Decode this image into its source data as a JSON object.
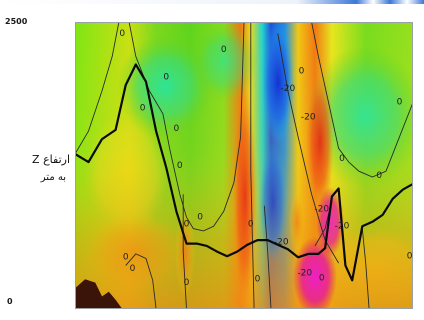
{
  "chart_data": {
    "type": "heatmap",
    "title": "",
    "xlabel": "",
    "ylabel": "ارتفاع Z به متر",
    "ylabel_lines": [
      "ارتفاع Z",
      "به متر"
    ],
    "y_ticks": [
      "2500",
      "0"
    ],
    "ylim": [
      0,
      2500
    ],
    "xlim": [
      0,
      100
    ],
    "grid": false,
    "legend": "none",
    "colormap": [
      "#1e4bd2",
      "#18b4e6",
      "#1ee6a0",
      "#5ad21e",
      "#d2e61e",
      "#f0c814",
      "#f08c14",
      "#e61e14",
      "#e61ec8"
    ],
    "contour_label_color": "#202020",
    "contour_labels": [
      {
        "text": "0",
        "x": 14,
        "y": 2380
      },
      {
        "text": "0",
        "x": 20,
        "y": 1730
      },
      {
        "text": "0",
        "x": 27,
        "y": 2000
      },
      {
        "text": "0",
        "x": 30,
        "y": 1550
      },
      {
        "text": "0",
        "x": 31,
        "y": 1230
      },
      {
        "text": "0",
        "x": 33,
        "y": 720
      },
      {
        "text": "0",
        "x": 37,
        "y": 780
      },
      {
        "text": "0",
        "x": 44,
        "y": 2240
      },
      {
        "text": "0",
        "x": 52,
        "y": 720
      },
      {
        "text": "0",
        "x": 54,
        "y": 240
      },
      {
        "text": "0",
        "x": 67,
        "y": 2050
      },
      {
        "text": "0",
        "x": 79,
        "y": 1290
      },
      {
        "text": "0",
        "x": 90,
        "y": 1140
      },
      {
        "text": "0",
        "x": 96,
        "y": 1780
      },
      {
        "text": "0",
        "x": 99,
        "y": 440
      },
      {
        "text": "0",
        "x": 15,
        "y": 430
      },
      {
        "text": "0",
        "x": 17,
        "y": 330
      },
      {
        "text": "0",
        "x": 33,
        "y": 210
      },
      {
        "text": "0",
        "x": 73,
        "y": 250
      },
      {
        "text": "-20",
        "x": 63,
        "y": 1900
      },
      {
        "text": "-20",
        "x": 69,
        "y": 1650
      },
      {
        "text": "-20",
        "x": 73,
        "y": 850
      },
      {
        "text": "-20",
        "x": 79,
        "y": 700
      },
      {
        "text": "-20",
        "x": 61,
        "y": 560
      },
      {
        "text": "-20",
        "x": 68,
        "y": 290
      }
    ],
    "thick_line": [
      [
        0,
        1350
      ],
      [
        4,
        1280
      ],
      [
        8,
        1480
      ],
      [
        12,
        1560
      ],
      [
        15,
        1950
      ],
      [
        18,
        2130
      ],
      [
        21,
        1980
      ],
      [
        24,
        1550
      ],
      [
        27,
        1230
      ],
      [
        30,
        850
      ],
      [
        33,
        570
      ],
      [
        36,
        570
      ],
      [
        39,
        550
      ],
      [
        42,
        500
      ],
      [
        45,
        460
      ],
      [
        48,
        500
      ],
      [
        51,
        560
      ],
      [
        54,
        600
      ],
      [
        57,
        600
      ],
      [
        60,
        560
      ],
      [
        63,
        520
      ],
      [
        66,
        450
      ],
      [
        69,
        480
      ],
      [
        72,
        480
      ],
      [
        74,
        530
      ],
      [
        76,
        980
      ],
      [
        78,
        1050
      ],
      [
        80,
        380
      ],
      [
        82,
        250
      ],
      [
        85,
        720
      ],
      [
        88,
        760
      ],
      [
        91,
        820
      ],
      [
        94,
        960
      ],
      [
        97,
        1040
      ],
      [
        100,
        1090
      ]
    ],
    "contours": [
      [
        [
          16,
          2500
        ],
        [
          18,
          2200
        ],
        [
          22,
          1900
        ],
        [
          26,
          1700
        ],
        [
          28,
          1400
        ],
        [
          31,
          1000
        ],
        [
          33,
          800
        ],
        [
          35,
          700
        ],
        [
          38,
          680
        ],
        [
          41,
          720
        ],
        [
          44,
          850
        ],
        [
          47,
          1100
        ],
        [
          49,
          1500
        ],
        [
          50,
          2500
        ]
      ],
      [
        [
          0,
          1350
        ],
        [
          4,
          1550
        ],
        [
          8,
          1900
        ],
        [
          11,
          2200
        ],
        [
          13,
          2500
        ]
      ],
      [
        [
          70,
          2500
        ],
        [
          72,
          2200
        ],
        [
          75,
          1800
        ],
        [
          78,
          1400
        ],
        [
          81,
          1280
        ],
        [
          84,
          1200
        ],
        [
          88,
          1150
        ],
        [
          92,
          1200
        ],
        [
          96,
          1500
        ],
        [
          100,
          1800
        ]
      ],
      [
        [
          15,
          380
        ],
        [
          18,
          480
        ],
        [
          21,
          440
        ],
        [
          23,
          250
        ],
        [
          24,
          0
        ]
      ],
      [
        [
          32,
          1000
        ],
        [
          32,
          500
        ],
        [
          33,
          0
        ]
      ],
      [
        [
          52,
          2500
        ],
        [
          52,
          1200
        ],
        [
          53,
          0
        ]
      ],
      [
        [
          56,
          900
        ],
        [
          57,
          500
        ],
        [
          58,
          0
        ]
      ],
      [
        [
          60,
          2400
        ],
        [
          63,
          1900
        ],
        [
          66,
          1500
        ],
        [
          70,
          1000
        ],
        [
          74,
          600
        ],
        [
          78,
          400
        ]
      ],
      [
        [
          71,
          550
        ],
        [
          74,
          700
        ],
        [
          76,
          950
        ]
      ],
      [
        [
          85,
          700
        ],
        [
          86,
          400
        ],
        [
          87,
          0
        ]
      ]
    ],
    "terrain": [
      [
        0,
        0
      ],
      [
        0,
        180
      ],
      [
        3,
        260
      ],
      [
        6,
        230
      ],
      [
        8,
        110
      ],
      [
        10,
        150
      ],
      [
        12,
        80
      ],
      [
        14,
        0
      ]
    ]
  }
}
